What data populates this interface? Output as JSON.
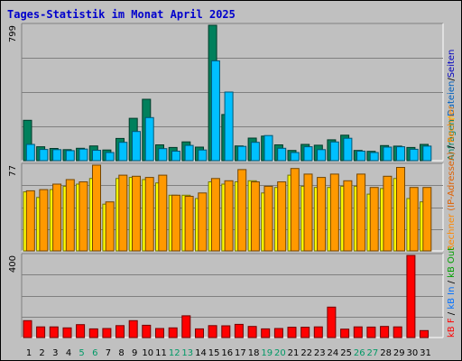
{
  "title": "Tages-Statistik im Monat April 2025",
  "chart_data": [
    {
      "type": "bar",
      "name": "requests-files-pages",
      "series": [
        {
          "name": "Anfragen",
          "color": "#00805c",
          "values": [
            238,
            82,
            72,
            65,
            73,
            87,
            63,
            131,
            250,
            362,
            93,
            78,
            111,
            80,
            799,
            272,
            87,
            133,
            145,
            93,
            60,
            96,
            91,
            123,
            150,
            60,
            55,
            89,
            86,
            78,
            96
          ]
        },
        {
          "name": "Dateien",
          "color": "#00c0ff",
          "values": [
            96,
            66,
            65,
            59,
            68,
            61,
            48,
            108,
            172,
            254,
            71,
            56,
            90,
            63,
            589,
            405,
            84,
            108,
            148,
            73,
            48,
            82,
            65,
            110,
            132,
            56,
            48,
            80,
            82,
            67,
            86
          ]
        },
        {
          "name": "Seiten",
          "color": "#0000ff",
          "values": [
            0,
            0,
            0,
            0,
            0,
            0,
            0,
            0,
            0,
            0,
            0,
            0,
            0,
            0,
            0,
            0,
            0,
            0,
            0,
            0,
            0,
            0,
            0,
            0,
            0,
            0,
            0,
            0,
            0,
            0,
            0
          ]
        }
      ],
      "ymax": 799,
      "ymax_label": "799"
    },
    {
      "type": "bar",
      "name": "hosts-kbytes",
      "series": [
        {
          "name": "Rechner",
          "color": "#ffff00",
          "values": [
            53,
            48,
            55,
            58,
            60,
            65,
            42,
            65,
            66,
            64,
            61,
            50,
            50,
            47,
            62,
            60,
            62,
            63,
            52,
            57,
            68,
            58,
            57,
            57,
            58,
            58,
            51,
            56,
            65,
            47,
            44
          ]
        },
        {
          "name": "kB F",
          "color": "#ff9900",
          "values": [
            54,
            55,
            60,
            64,
            62,
            77,
            44,
            68,
            67,
            66,
            68,
            50,
            49,
            52,
            65,
            63,
            73,
            62,
            58,
            62,
            74,
            69,
            66,
            69,
            63,
            69,
            57,
            67,
            75,
            57,
            57
          ]
        }
      ],
      "ymax": 77,
      "ymax_label": "77"
    },
    {
      "type": "bar",
      "name": "kb-per-day",
      "series": [
        {
          "name": "kB F",
          "color": "#ff0000",
          "values": [
            82,
            52,
            52,
            47,
            63,
            42,
            44,
            58,
            82,
            60,
            44,
            47,
            106,
            42,
            58,
            57,
            64,
            54,
            42,
            44,
            50,
            50,
            52,
            148,
            41,
            52,
            51,
            54,
            52,
            400,
            34
          ]
        }
      ],
      "ymax": 400,
      "ymax_label": "400"
    }
  ],
  "days": [
    "1",
    "2",
    "3",
    "4",
    "5",
    "6",
    "7",
    "8",
    "9",
    "10",
    "11",
    "12",
    "13",
    "14",
    "15",
    "16",
    "17",
    "18",
    "19",
    "20",
    "21",
    "22",
    "23",
    "24",
    "25",
    "26",
    "27",
    "28",
    "29",
    "30",
    "31"
  ],
  "weekend_days": [
    5,
    6,
    12,
    13,
    19,
    20,
    26,
    27
  ],
  "right_legend": [
    {
      "id": "top",
      "items": [
        {
          "text": "Anfragen",
          "color": "#00805c"
        },
        {
          "text": "/",
          "color": "#ffcc00"
        },
        {
          "text": "Dateien",
          "color": "#0060c0"
        },
        {
          "text": "/",
          "color": "#000000"
        },
        {
          "text": "Seiten",
          "color": "#0000c0"
        }
      ]
    },
    {
      "id": "mid",
      "items": [
        {
          "text": "Rechner",
          "color": "#ff8800"
        },
        {
          "text": " (IP-Adressen)",
          "color": "#e06000"
        },
        {
          "text": " / ",
          "color": "#000000"
        },
        {
          "text": "Rechner",
          "color": "#ff8800"
        }
      ]
    },
    {
      "id": "bot",
      "items": [
        {
          "text": "kB F",
          "color": "#ff0000"
        },
        {
          "text": " / ",
          "color": "#000000"
        },
        {
          "text": "kB In",
          "color": "#0070ff"
        },
        {
          "text": " / ",
          "color": "#000000"
        },
        {
          "text": "kB Out",
          "color": "#00a000"
        }
      ]
    }
  ],
  "colors": {
    "background": "#c0c0c0",
    "gridline": "#808080",
    "weekday_label": "#000000",
    "weekend_label": "#009966",
    "title": "#0000cc"
  }
}
